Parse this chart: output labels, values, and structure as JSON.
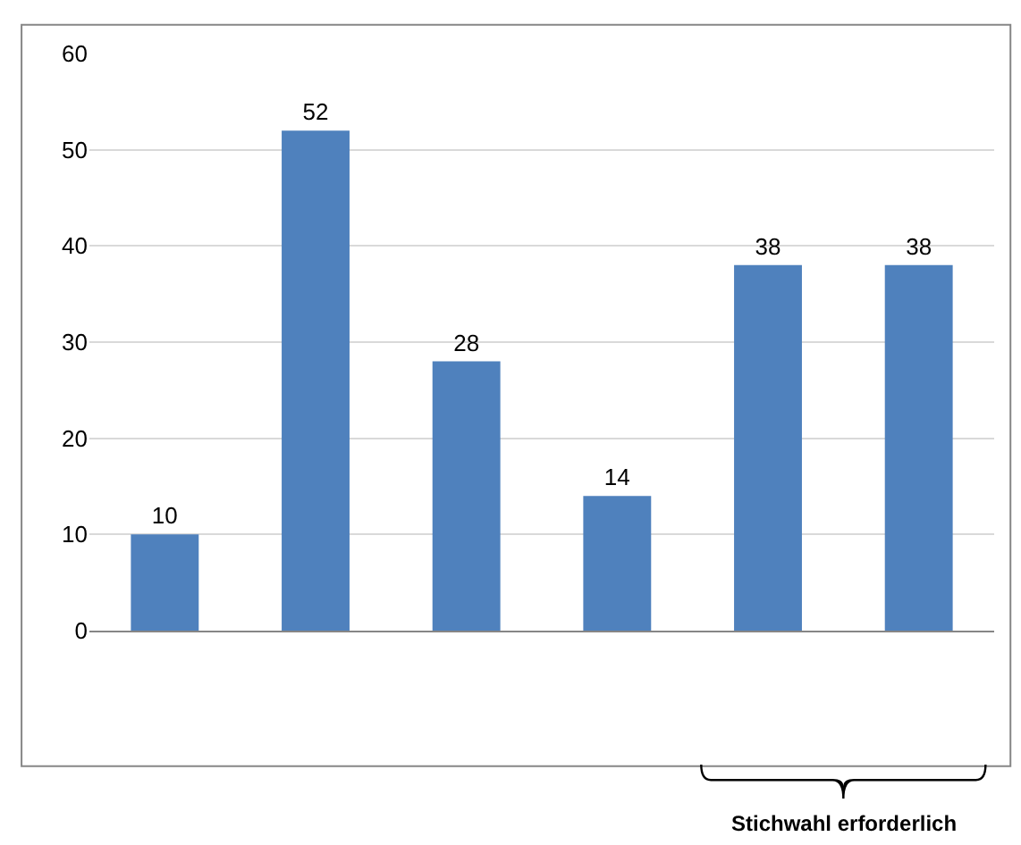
{
  "chart_data": {
    "type": "bar",
    "categories": [
      null,
      null,
      null,
      null,
      null,
      null
    ],
    "values": [
      10,
      52,
      28,
      14,
      38,
      38
    ],
    "color": "#4f81bd",
    "data_labels": true,
    "grid": "y",
    "tick_labels": "y",
    "ylim": [
      0,
      60
    ],
    "yticks": [
      0,
      10,
      20,
      30,
      40,
      50,
      60
    ],
    "annotations": [
      "Stichwahl erforderlich"
    ]
  }
}
